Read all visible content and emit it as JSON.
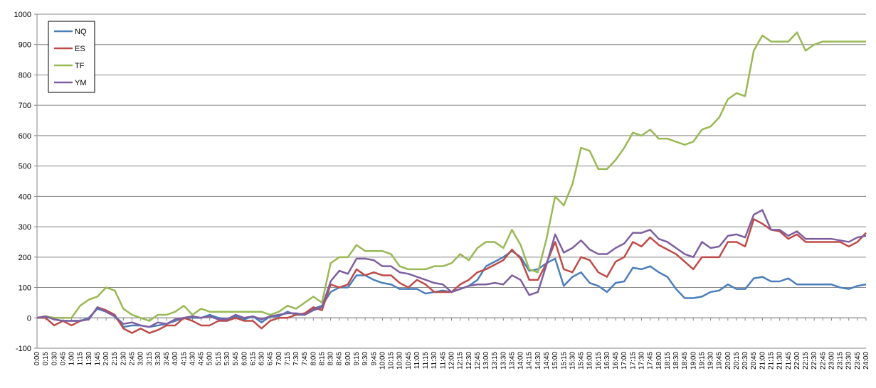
{
  "chart_data": {
    "type": "line",
    "categories": [
      "0:00",
      "0:15",
      "0:30",
      "0:45",
      "1:00",
      "1:15",
      "1:30",
      "1:45",
      "2:00",
      "2:15",
      "2:30",
      "2:45",
      "3:00",
      "3:15",
      "3:30",
      "3:45",
      "4:00",
      "4:15",
      "4:30",
      "4:45",
      "5:00",
      "5:15",
      "5:30",
      "5:45",
      "6:00",
      "6:15",
      "6:30",
      "6:45",
      "7:00",
      "7:15",
      "7:30",
      "7:45",
      "8:00",
      "8:15",
      "8:30",
      "8:45",
      "9:00",
      "9:15",
      "9:30",
      "9:45",
      "10:00",
      "10:15",
      "10:30",
      "10:45",
      "11:00",
      "11:15",
      "11:30",
      "11:45",
      "12:00",
      "12:15",
      "12:30",
      "12:45",
      "13:00",
      "13:15",
      "13:30",
      "13:45",
      "14:00",
      "14:15",
      "14:30",
      "14:45",
      "15:00",
      "15:15",
      "15:30",
      "15:45",
      "16:00",
      "16:15",
      "16:30",
      "16:45",
      "17:00",
      "17:15",
      "17:30",
      "17:45",
      "18:00",
      "18:15",
      "18:30",
      "18:45",
      "19:00",
      "19:15",
      "19:30",
      "19:45",
      "20:00",
      "20:15",
      "20:30",
      "20:45",
      "21:00",
      "21:15",
      "21:30",
      "21:45",
      "22:00",
      "22:15",
      "22:30",
      "22:45",
      "23:00",
      "23:15",
      "23:30",
      "23:45",
      "24:00"
    ],
    "series": [
      {
        "name": "NQ",
        "color": "#4a7ebb",
        "values": [
          0,
          5,
          -5,
          -10,
          -10,
          -10,
          0,
          30,
          20,
          5,
          -30,
          -25,
          -25,
          -30,
          -25,
          -20,
          -10,
          0,
          0,
          0,
          10,
          0,
          -5,
          5,
          -5,
          5,
          -15,
          5,
          5,
          20,
          10,
          10,
          30,
          40,
          85,
          100,
          100,
          140,
          140,
          125,
          115,
          110,
          95,
          95,
          95,
          80,
          85,
          90,
          85,
          95,
          105,
          125,
          170,
          185,
          200,
          220,
          200,
          155,
          160,
          180,
          195,
          105,
          135,
          150,
          115,
          105,
          85,
          115,
          120,
          165,
          160,
          170,
          150,
          135,
          95,
          65,
          65,
          70,
          85,
          90,
          110,
          95,
          95,
          130,
          135,
          120,
          120,
          130,
          110,
          110,
          110,
          110,
          110,
          100,
          95,
          105,
          110
        ]
      },
      {
        "name": "ES",
        "color": "#be4b48",
        "values": [
          0,
          0,
          -25,
          -10,
          -25,
          -10,
          -5,
          35,
          25,
          10,
          -35,
          -50,
          -35,
          -50,
          -40,
          -25,
          -25,
          0,
          -10,
          -25,
          -25,
          -10,
          -10,
          0,
          -10,
          -10,
          -35,
          -10,
          0,
          0,
          10,
          15,
          35,
          25,
          110,
          100,
          110,
          160,
          140,
          150,
          140,
          140,
          115,
          100,
          125,
          110,
          85,
          85,
          85,
          110,
          125,
          150,
          160,
          175,
          190,
          225,
          195,
          125,
          125,
          180,
          250,
          160,
          150,
          200,
          190,
          150,
          135,
          185,
          200,
          250,
          235,
          265,
          240,
          225,
          210,
          185,
          160,
          200,
          200,
          200,
          250,
          250,
          235,
          325,
          310,
          290,
          285,
          260,
          275,
          250,
          250,
          250,
          250,
          250,
          235,
          250,
          280
        ]
      },
      {
        "name": "TF",
        "color": "#98b954",
        "values": [
          0,
          5,
          0,
          0,
          0,
          40,
          60,
          70,
          100,
          90,
          30,
          10,
          0,
          -10,
          10,
          10,
          20,
          40,
          10,
          30,
          20,
          20,
          20,
          20,
          20,
          20,
          20,
          10,
          20,
          40,
          30,
          50,
          70,
          50,
          180,
          200,
          200,
          240,
          220,
          220,
          220,
          210,
          170,
          160,
          160,
          160,
          170,
          170,
          180,
          210,
          190,
          230,
          250,
          250,
          230,
          290,
          240,
          160,
          150,
          260,
          400,
          370,
          440,
          560,
          550,
          490,
          490,
          520,
          560,
          610,
          600,
          620,
          590,
          590,
          580,
          570,
          580,
          620,
          630,
          660,
          720,
          740,
          730,
          880,
          930,
          910,
          910,
          910,
          940,
          880,
          900,
          910,
          910,
          910,
          910,
          910,
          910
        ]
      },
      {
        "name": "YM",
        "color": "#7d5fa0",
        "values": [
          0,
          5,
          -5,
          -10,
          -10,
          -10,
          -5,
          35,
          20,
          5,
          -20,
          -15,
          -25,
          -30,
          -15,
          -20,
          -5,
          0,
          5,
          0,
          5,
          -5,
          -5,
          10,
          0,
          5,
          -5,
          5,
          10,
          15,
          15,
          10,
          25,
          35,
          120,
          155,
          145,
          195,
          195,
          190,
          170,
          170,
          150,
          145,
          135,
          125,
          115,
          110,
          85,
          95,
          105,
          110,
          110,
          115,
          110,
          140,
          125,
          75,
          85,
          175,
          275,
          215,
          230,
          255,
          225,
          210,
          210,
          230,
          245,
          280,
          280,
          290,
          260,
          250,
          230,
          210,
          200,
          250,
          230,
          235,
          270,
          275,
          265,
          340,
          355,
          290,
          290,
          270,
          285,
          260,
          260,
          260,
          260,
          255,
          250,
          265,
          270
        ]
      }
    ],
    "ylim": [
      -100,
      1000
    ],
    "yticks": [
      -100,
      0,
      100,
      200,
      300,
      400,
      500,
      600,
      700,
      800,
      900,
      1000
    ],
    "grid": true,
    "legend": "top-left"
  }
}
